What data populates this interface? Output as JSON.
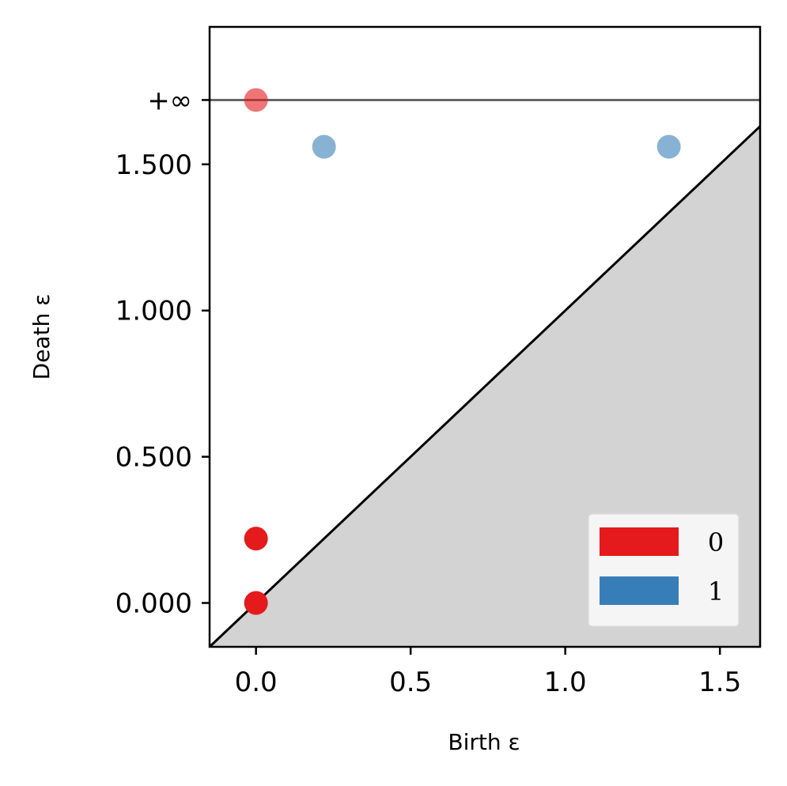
{
  "chart_data": {
    "type": "scatter",
    "title": "",
    "xlabel": "Birth ε",
    "ylabel": "Death ε",
    "xlim": [
      -0.15,
      1.63
    ],
    "ylim": [
      -0.15,
      1.97
    ],
    "x_ticks": [
      {
        "value": 0.0,
        "label": "0.0"
      },
      {
        "value": 0.5,
        "label": "0.5"
      },
      {
        "value": 1.0,
        "label": "1.0"
      },
      {
        "value": 1.5,
        "label": "1.5"
      }
    ],
    "y_ticks": [
      {
        "value": 0.0,
        "label": "0.000"
      },
      {
        "value": 0.5,
        "label": "0.500"
      },
      {
        "value": 1.0,
        "label": "1.000"
      },
      {
        "value": 1.5,
        "label": "1.500"
      },
      {
        "value": 1.72,
        "label": "+∞"
      }
    ],
    "infinity_line": {
      "value": 1.72,
      "label": "+∞",
      "color": "#666666"
    },
    "diagonal": {
      "color": "#000000",
      "fill": "#d3d3d3"
    },
    "grid": false,
    "legend_position": "lower-right",
    "series": [
      {
        "name": "0",
        "color": "#e41a1c",
        "points": [
          {
            "x": 0.0,
            "y": 0.0
          },
          {
            "x": 0.0,
            "y": 0.22
          },
          {
            "x": 0.0,
            "y": 1.72,
            "infinite": true
          }
        ]
      },
      {
        "name": "1",
        "color": "#377eb8",
        "points": [
          {
            "x": 0.22,
            "y": 1.56
          },
          {
            "x": 1.335,
            "y": 1.56
          }
        ]
      }
    ]
  }
}
